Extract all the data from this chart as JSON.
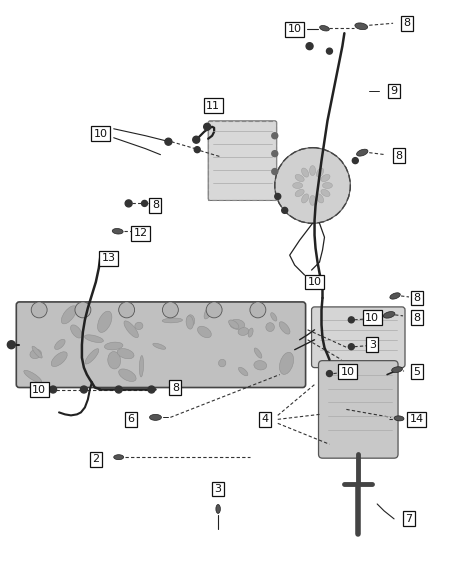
{
  "bg_color": "#ffffff",
  "line_color": "#222222",
  "figsize": [
    4.74,
    5.75
  ],
  "dpi": 100
}
